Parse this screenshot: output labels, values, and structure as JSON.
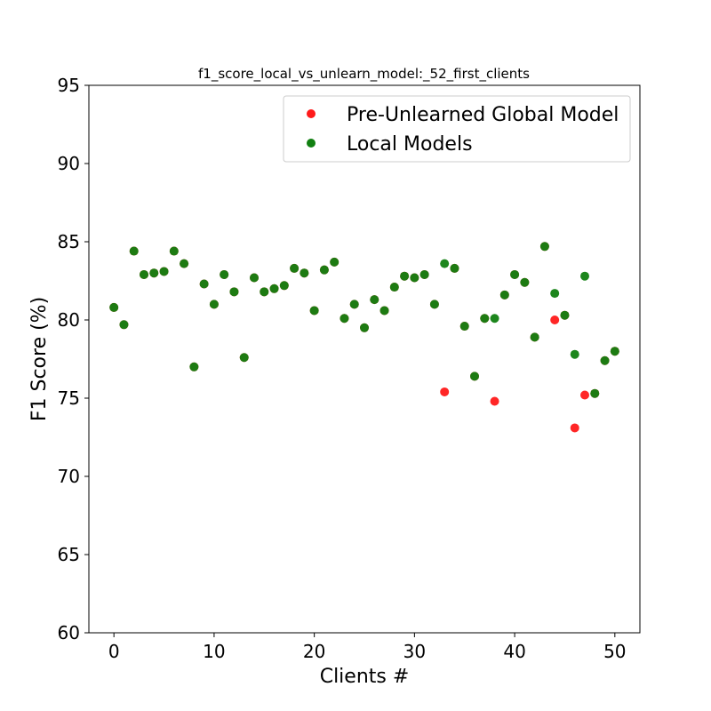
{
  "chart_data": {
    "type": "scatter",
    "title": "f1_score_local_vs_unlearn_model:_52_first_clients",
    "xlabel": "Clients #",
    "ylabel": "F1 Score (%)",
    "xlim": [
      -2.5,
      52.5
    ],
    "ylim": [
      60,
      95
    ],
    "xticks": [
      0,
      10,
      20,
      30,
      40,
      50
    ],
    "yticks": [
      60,
      65,
      70,
      75,
      80,
      85,
      90,
      95
    ],
    "grid": false,
    "legend_position": "top-right",
    "series": [
      {
        "name": "Pre-Unlearned Global Model",
        "color": "#ff1a1a",
        "x": [
          0,
          1,
          2,
          3,
          4,
          5,
          6,
          7,
          8,
          9,
          10,
          11,
          12,
          13,
          14,
          15,
          16,
          17,
          18,
          19,
          20,
          21,
          22,
          23,
          24,
          25,
          26,
          27,
          28,
          29,
          30,
          31,
          32,
          33,
          34,
          35,
          36,
          37,
          38,
          39,
          40,
          41,
          42,
          43,
          44,
          45,
          46,
          47,
          48,
          49,
          50
        ],
        "y": [
          80.8,
          79.7,
          84.4,
          82.9,
          83.0,
          83.1,
          84.4,
          83.6,
          77.0,
          82.3,
          81.0,
          82.9,
          81.8,
          77.6,
          82.7,
          81.8,
          82.0,
          82.2,
          83.3,
          83.0,
          80.6,
          83.2,
          83.7,
          80.1,
          81.0,
          79.5,
          81.3,
          80.6,
          82.1,
          82.8,
          82.7,
          82.9,
          81.0,
          75.4,
          83.3,
          79.6,
          76.4,
          80.1,
          74.8,
          81.6,
          82.9,
          82.4,
          78.9,
          84.7,
          80.0,
          80.3,
          73.1,
          75.2,
          75.3,
          77.4,
          78.0
        ]
      },
      {
        "name": "Local Models",
        "color": "#118011",
        "x": [
          0,
          1,
          2,
          3,
          4,
          5,
          6,
          7,
          8,
          9,
          10,
          11,
          12,
          13,
          14,
          15,
          16,
          17,
          18,
          19,
          20,
          21,
          22,
          23,
          24,
          25,
          26,
          27,
          28,
          29,
          30,
          31,
          32,
          33,
          34,
          35,
          36,
          37,
          38,
          39,
          40,
          41,
          42,
          43,
          44,
          45,
          46,
          47,
          48,
          49,
          50
        ],
        "y": [
          80.8,
          79.7,
          84.4,
          82.9,
          83.0,
          83.1,
          84.4,
          83.6,
          77.0,
          82.3,
          81.0,
          82.9,
          81.8,
          77.6,
          82.7,
          81.8,
          82.0,
          82.2,
          83.3,
          83.0,
          80.6,
          83.2,
          83.7,
          80.1,
          81.0,
          79.5,
          81.3,
          80.6,
          82.1,
          82.8,
          82.7,
          82.9,
          81.0,
          83.6,
          83.3,
          79.6,
          76.4,
          80.1,
          80.1,
          81.6,
          82.9,
          82.4,
          78.9,
          84.7,
          81.7,
          80.3,
          77.8,
          82.8,
          75.3,
          77.4,
          78.0
        ]
      }
    ]
  }
}
